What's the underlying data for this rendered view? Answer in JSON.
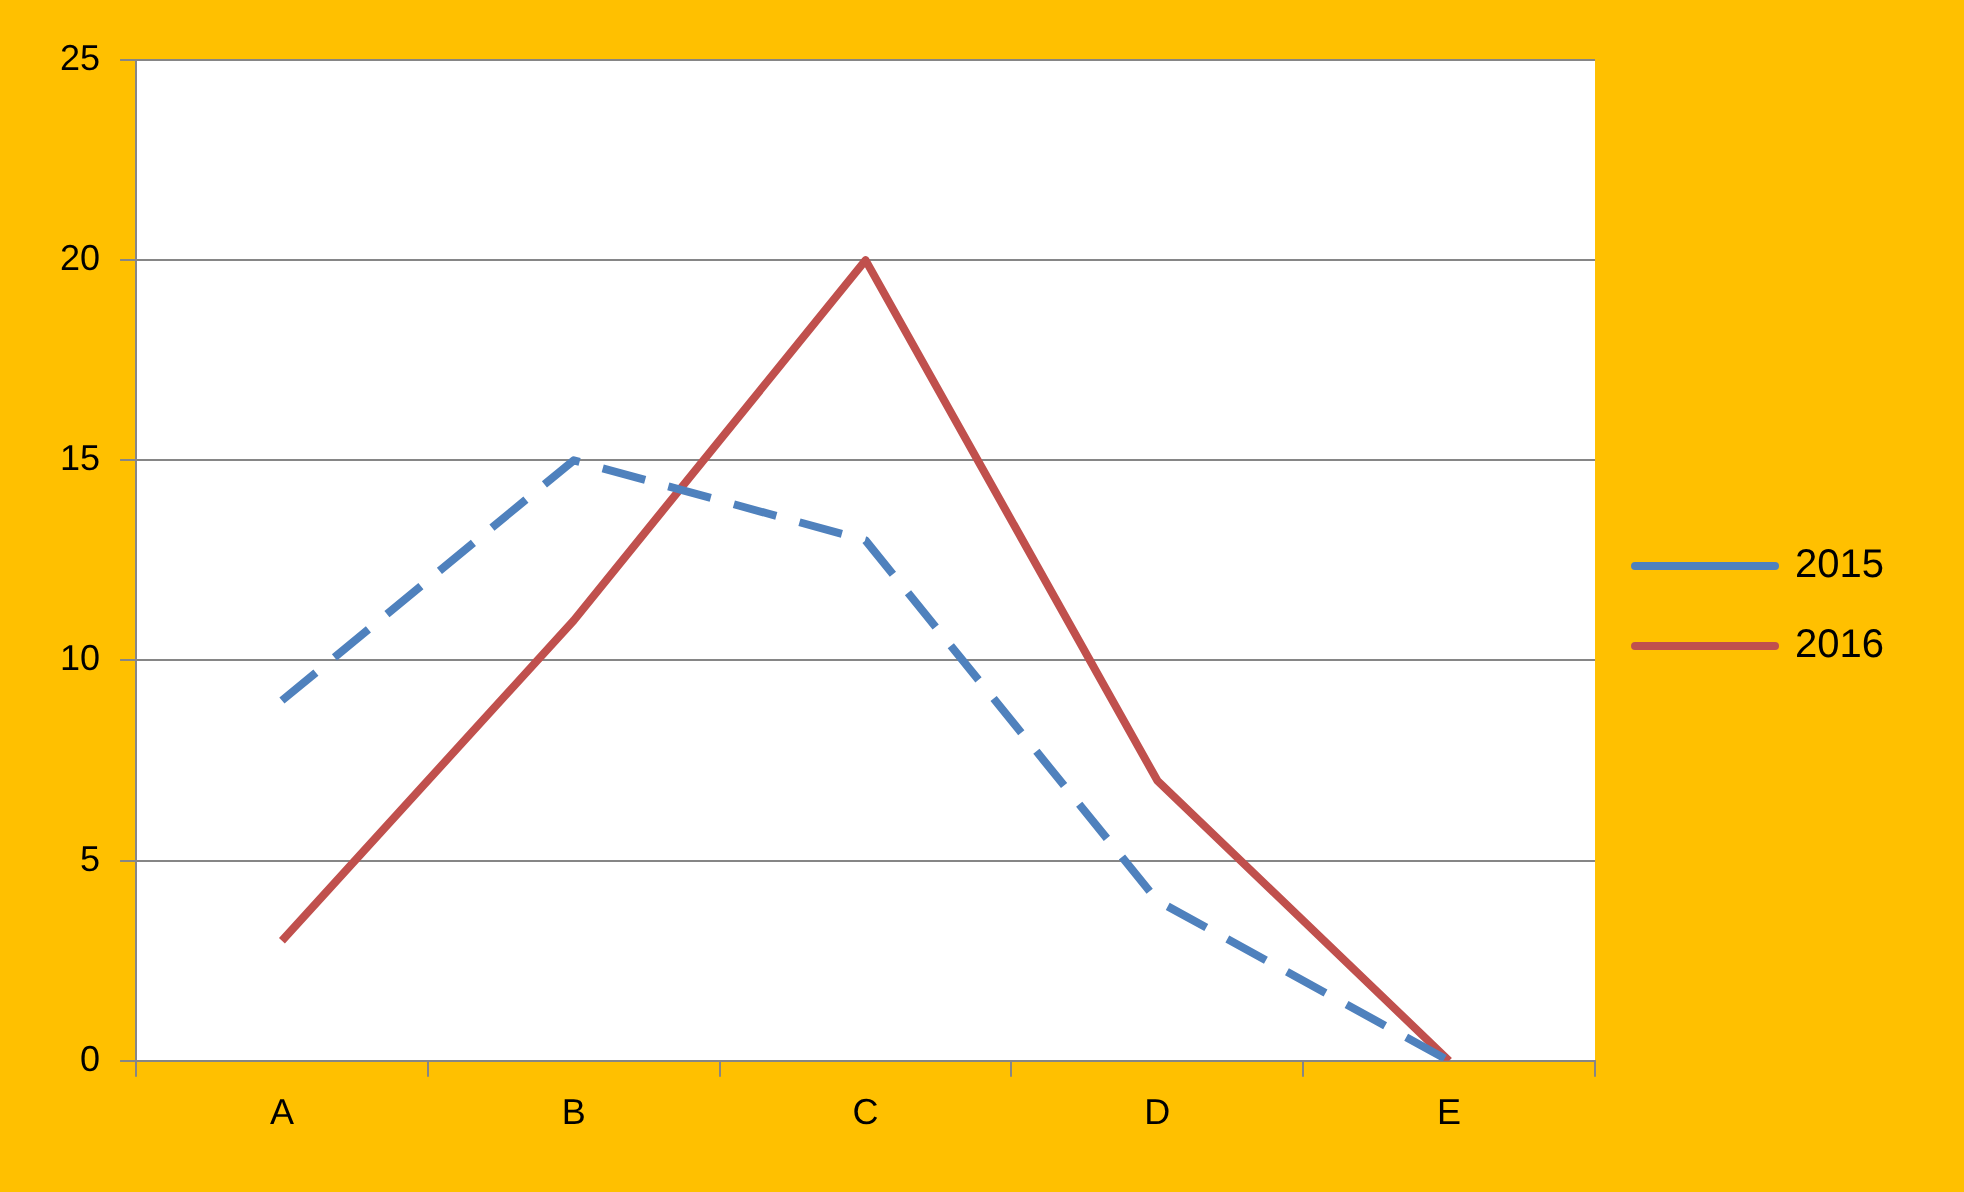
{
  "chart_data": {
    "type": "line",
    "categories": [
      "A",
      "B",
      "C",
      "D",
      "E"
    ],
    "series": [
      {
        "name": "2015",
        "color": "#4f81bd",
        "line_style": "dashed",
        "values": [
          9,
          15,
          13,
          4,
          0
        ]
      },
      {
        "name": "2016",
        "color": "#c0504d",
        "line_style": "solid",
        "values": [
          3,
          11,
          20,
          7,
          0
        ]
      }
    ],
    "ylim": [
      0,
      25
    ],
    "yticks": [
      0,
      5,
      10,
      15,
      20,
      25
    ],
    "grid": "y",
    "legend": "right",
    "marker": "none"
  }
}
